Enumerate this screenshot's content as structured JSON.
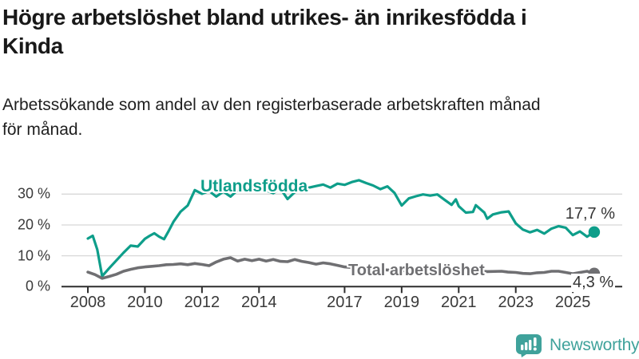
{
  "header": {
    "title_lines": [
      "Högre arbetslöshet bland utrikes- än inrikesfödda i",
      "Kinda"
    ],
    "subtitle_lines": [
      "Arbetssökande som andel av den registerbaserade arbetskraften månad",
      "för månad."
    ]
  },
  "branding": {
    "name": "Newsworthy",
    "color": "#3fa29b",
    "icon": "bar-chart-speech-bubble-icon"
  },
  "chart_data": {
    "type": "line",
    "title": "Högre arbetslöshet bland utrikes- än inrikesfödda i Kinda",
    "subtitle": "Arbetssökande som andel av den registerbaserade arbetskraften månad för månad.",
    "xlabel": "",
    "ylabel": "",
    "xlim": [
      2007.9,
      2026.0
    ],
    "ylim": [
      0,
      36
    ],
    "grid": "horizontal",
    "legend_position": "inline-labels",
    "x_ticks": [
      {
        "year": 2008,
        "label": "2008"
      },
      {
        "year": 2010,
        "label": "2010"
      },
      {
        "year": 2012,
        "label": "2012"
      },
      {
        "year": 2014,
        "label": "2014"
      },
      {
        "year": 2017,
        "label": "2017"
      },
      {
        "year": 2019,
        "label": "2019"
      },
      {
        "year": 2021,
        "label": "2021"
      },
      {
        "year": 2023,
        "label": "2023"
      },
      {
        "year": 2025,
        "label": "2025"
      }
    ],
    "y_ticks": [
      {
        "value": 0,
        "label": "0 %"
      },
      {
        "value": 10,
        "label": "10 %"
      },
      {
        "value": 20,
        "label": "20 %"
      },
      {
        "value": 30,
        "label": "30 %"
      }
    ],
    "series": [
      {
        "name": "Utlandsfödda",
        "color": "#0e9e8a",
        "end_label": "17,7 %",
        "end_value": 17.7,
        "points": [
          [
            2008.0,
            15.6
          ],
          [
            2008.17,
            16.5
          ],
          [
            2008.33,
            12.0
          ],
          [
            2008.5,
            3.4
          ],
          [
            2008.75,
            6.0
          ],
          [
            2009.0,
            8.5
          ],
          [
            2009.25,
            11.0
          ],
          [
            2009.5,
            13.3
          ],
          [
            2009.75,
            13.0
          ],
          [
            2010.0,
            15.5
          ],
          [
            2010.17,
            16.5
          ],
          [
            2010.33,
            17.3
          ],
          [
            2010.5,
            16.2
          ],
          [
            2010.67,
            15.4
          ],
          [
            2010.83,
            18.0
          ],
          [
            2011.0,
            21.0
          ],
          [
            2011.25,
            24.3
          ],
          [
            2011.5,
            26.3
          ],
          [
            2011.75,
            31.3
          ],
          [
            2012.0,
            30.1
          ],
          [
            2012.25,
            31.0
          ],
          [
            2012.5,
            29.2
          ],
          [
            2012.75,
            30.8
          ],
          [
            2013.0,
            29.2
          ],
          [
            2013.25,
            31.3
          ],
          [
            2013.5,
            32.2
          ],
          [
            2013.75,
            31.2
          ],
          [
            2014.0,
            32.3
          ],
          [
            2014.25,
            31.2
          ],
          [
            2014.5,
            30.3
          ],
          [
            2014.75,
            31.8
          ],
          [
            2015.0,
            28.4
          ],
          [
            2015.25,
            30.6
          ],
          [
            2015.5,
            31.6
          ],
          [
            2015.75,
            32.1
          ],
          [
            2016.0,
            32.6
          ],
          [
            2016.25,
            33.1
          ],
          [
            2016.5,
            32.1
          ],
          [
            2016.75,
            33.4
          ],
          [
            2017.0,
            33.0
          ],
          [
            2017.25,
            33.9
          ],
          [
            2017.5,
            34.5
          ],
          [
            2017.75,
            33.6
          ],
          [
            2018.0,
            32.8
          ],
          [
            2018.25,
            31.6
          ],
          [
            2018.5,
            32.5
          ],
          [
            2018.75,
            30.4
          ],
          [
            2019.0,
            26.3
          ],
          [
            2019.25,
            28.6
          ],
          [
            2019.5,
            29.3
          ],
          [
            2019.75,
            29.9
          ],
          [
            2020.0,
            29.5
          ],
          [
            2020.25,
            29.9
          ],
          [
            2020.5,
            28.2
          ],
          [
            2020.75,
            26.5
          ],
          [
            2020.9,
            28.3
          ],
          [
            2021.0,
            26.1
          ],
          [
            2021.25,
            24.0
          ],
          [
            2021.5,
            24.2
          ],
          [
            2021.6,
            26.4
          ],
          [
            2021.9,
            24.0
          ],
          [
            2022.0,
            22.0
          ],
          [
            2022.2,
            23.4
          ],
          [
            2022.5,
            24.1
          ],
          [
            2022.75,
            24.4
          ],
          [
            2023.0,
            20.5
          ],
          [
            2023.25,
            18.5
          ],
          [
            2023.5,
            17.6
          ],
          [
            2023.75,
            18.4
          ],
          [
            2024.0,
            17.2
          ],
          [
            2024.25,
            18.8
          ],
          [
            2024.5,
            19.6
          ],
          [
            2024.75,
            19.1
          ],
          [
            2025.0,
            16.7
          ],
          [
            2025.25,
            17.9
          ],
          [
            2025.5,
            16.2
          ],
          [
            2025.75,
            17.7
          ]
        ]
      },
      {
        "name": "Total arbetslöshet",
        "color": "#6f6f72",
        "end_label": "4,3 %",
        "end_value": 4.3,
        "points": [
          [
            2008.0,
            4.7
          ],
          [
            2008.25,
            3.9
          ],
          [
            2008.5,
            2.7
          ],
          [
            2008.75,
            3.3
          ],
          [
            2009.0,
            4.0
          ],
          [
            2009.25,
            5.0
          ],
          [
            2009.5,
            5.6
          ],
          [
            2009.75,
            6.1
          ],
          [
            2010.0,
            6.4
          ],
          [
            2010.25,
            6.6
          ],
          [
            2010.5,
            6.8
          ],
          [
            2010.75,
            7.1
          ],
          [
            2011.0,
            7.2
          ],
          [
            2011.25,
            7.4
          ],
          [
            2011.5,
            7.1
          ],
          [
            2011.75,
            7.5
          ],
          [
            2012.0,
            7.2
          ],
          [
            2012.25,
            6.8
          ],
          [
            2012.5,
            8.0
          ],
          [
            2012.75,
            8.9
          ],
          [
            2013.0,
            9.4
          ],
          [
            2013.25,
            8.3
          ],
          [
            2013.5,
            8.9
          ],
          [
            2013.75,
            8.4
          ],
          [
            2014.0,
            8.9
          ],
          [
            2014.25,
            8.3
          ],
          [
            2014.5,
            8.8
          ],
          [
            2014.75,
            8.2
          ],
          [
            2015.0,
            8.1
          ],
          [
            2015.25,
            8.8
          ],
          [
            2015.5,
            8.2
          ],
          [
            2015.75,
            7.8
          ],
          [
            2016.0,
            7.3
          ],
          [
            2016.25,
            7.7
          ],
          [
            2016.5,
            7.4
          ],
          [
            2016.75,
            6.9
          ],
          [
            2017.0,
            6.4
          ],
          [
            2017.5,
            6.0
          ],
          [
            2018.0,
            5.7
          ],
          [
            2018.5,
            5.4
          ],
          [
            2019.0,
            5.2
          ],
          [
            2019.5,
            5.1
          ],
          [
            2020.0,
            5.6
          ],
          [
            2020.5,
            5.9
          ],
          [
            2021.0,
            5.6
          ],
          [
            2021.5,
            5.2
          ],
          [
            2022.0,
            4.9
          ],
          [
            2022.5,
            5.0
          ],
          [
            2022.75,
            4.7
          ],
          [
            2023.0,
            4.6
          ],
          [
            2023.25,
            4.3
          ],
          [
            2023.5,
            4.2
          ],
          [
            2023.75,
            4.5
          ],
          [
            2024.0,
            4.6
          ],
          [
            2024.25,
            5.0
          ],
          [
            2024.5,
            5.0
          ],
          [
            2024.75,
            4.6
          ],
          [
            2025.0,
            4.2
          ],
          [
            2025.25,
            4.6
          ],
          [
            2025.5,
            5.0
          ],
          [
            2025.75,
            4.3
          ]
        ]
      }
    ],
    "colors": {
      "gridline": "#d8d8d8",
      "axis": "#2e2e2e",
      "tick_text": "#3a3a3a",
      "value_text": "#333333"
    }
  }
}
